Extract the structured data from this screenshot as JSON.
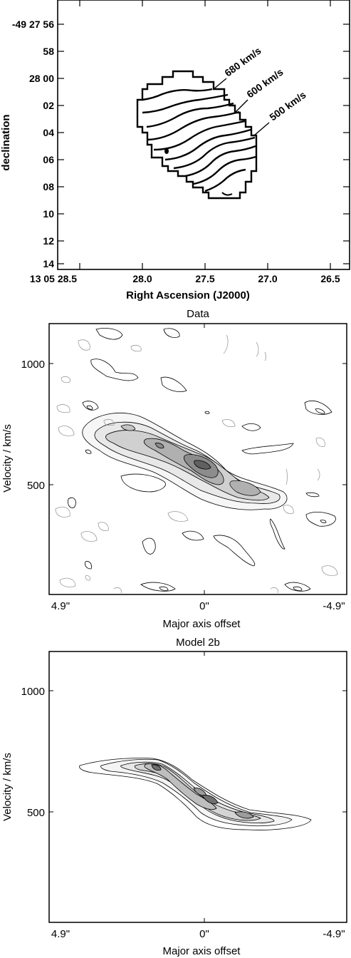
{
  "chart_data": [
    {
      "type": "contour",
      "xlabel": "Right Ascension (J2000)",
      "ylabel": "declination",
      "x_ticks": [
        "13 05 28.5",
        "28.0",
        "27.5",
        "27.0",
        "26.5"
      ],
      "y_ticks": [
        "-49 27 56",
        "58",
        "28 00",
        "02",
        "04",
        "06",
        "08",
        "10",
        "12",
        "14"
      ],
      "contour_labels": [
        "680 km/s",
        "600 km/s",
        "500 km/s"
      ]
    },
    {
      "type": "contour",
      "title": "Data",
      "xlabel": "Major axis offset",
      "ylabel": "Velocity / km/s",
      "x_ticks": [
        "4.9\"",
        "0\"",
        "-4.9\""
      ],
      "y_ticks": [
        "1000",
        "500"
      ],
      "xlim": [
        4.9,
        -4.9
      ],
      "ylim": [
        60,
        1170
      ]
    },
    {
      "type": "contour",
      "title": "Model 2b",
      "xlabel": "Major axis offset",
      "ylabel": "Velocity / km/s",
      "x_ticks": [
        "4.9\"",
        "0\"",
        "-4.9\""
      ],
      "y_ticks": [
        "1000",
        "500"
      ],
      "xlim": [
        4.9,
        -4.9
      ],
      "ylim": [
        60,
        1170
      ]
    }
  ]
}
